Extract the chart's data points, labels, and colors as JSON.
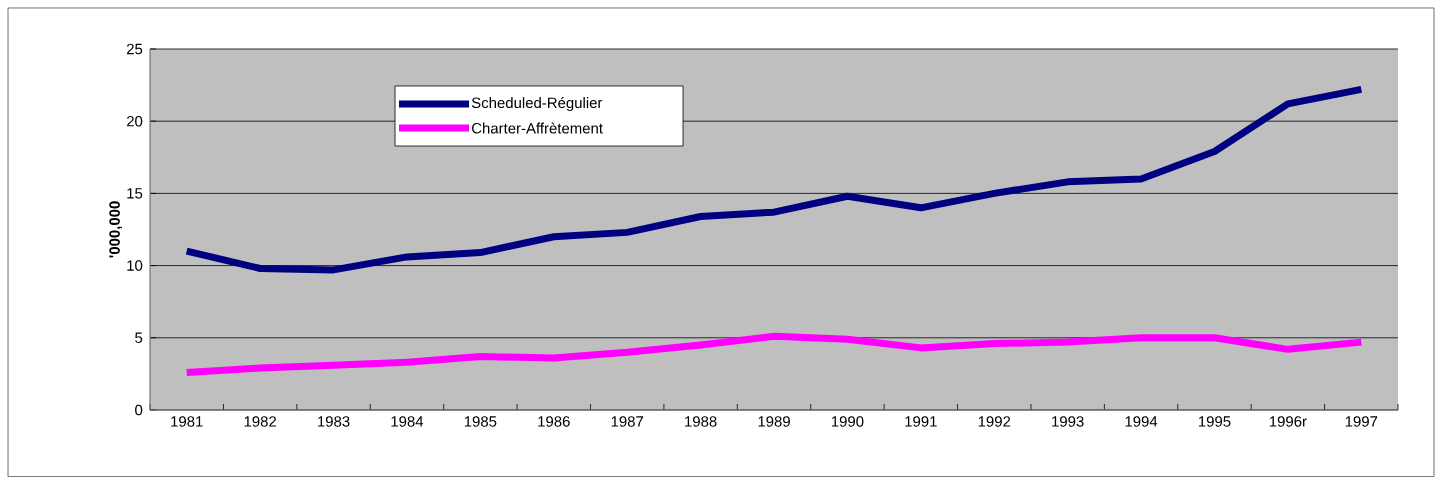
{
  "chart_data": {
    "type": "line",
    "ylabel": "'000,000",
    "categories": [
      "1981",
      "1982",
      "1983",
      "1984",
      "1985",
      "1986",
      "1987",
      "1988",
      "1989",
      "1990",
      "1991",
      "1992",
      "1993",
      "1994",
      "1995",
      "1996r",
      "1997"
    ],
    "series": [
      {
        "name": "Scheduled-Régulier",
        "color": "#000080",
        "values": [
          11.0,
          9.8,
          9.7,
          10.6,
          10.9,
          12.0,
          12.3,
          13.4,
          13.7,
          14.8,
          14.0,
          15.0,
          15.8,
          16.0,
          17.9,
          21.2,
          22.2
        ]
      },
      {
        "name": "Charter-Affrètement",
        "color": "#ff00ff",
        "values": [
          2.6,
          2.9,
          3.1,
          3.3,
          3.7,
          3.6,
          4.0,
          4.5,
          5.1,
          4.9,
          4.3,
          4.6,
          4.7,
          5.0,
          5.0,
          4.2,
          4.7
        ]
      }
    ],
    "ylim": [
      0,
      25
    ],
    "yticks": [
      0,
      5,
      10,
      15,
      20,
      25
    ],
    "grid": "y",
    "legend": "top left",
    "marker": "none",
    "line_style": "solid"
  }
}
